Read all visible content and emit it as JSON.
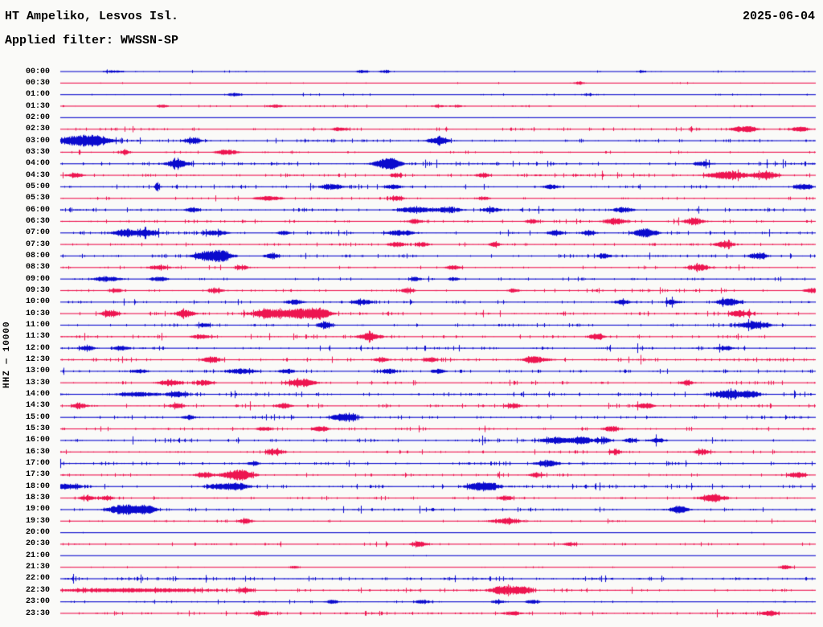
{
  "header": {
    "station": "HT Ampeliko, Lesvos Isl.",
    "filter_label": "Applied filter: WWSSN-SP",
    "date": "2025-06-04"
  },
  "axis": {
    "y_label": "HHZ — 10000",
    "time_label_suffix": "",
    "minutes_per_line": 30
  },
  "chart_data": {
    "type": "seismogram-helicorder",
    "station": "HT Ampeliko, Lesvos Isl.",
    "channel": "HHZ",
    "gain_scale": "10000",
    "filter": "WWSSN-SP",
    "date": "2025-06-04",
    "minutes_per_line": 30,
    "colors": {
      "blue": "#0a0acd",
      "red": "#ed1550"
    },
    "row_format": "t=line start time, c=trace color, n=relative background noise 0-1, b=bursts as [position 0-1 along line, peak amplitude px, half-width px]",
    "rows": [
      {
        "t": "00:00",
        "c": "blue",
        "n": 0.15,
        "b": [
          [
            0.07,
            1.5,
            10
          ],
          [
            0.4,
            2,
            6
          ],
          [
            0.43,
            2,
            5
          ],
          [
            0.77,
            1.5,
            4
          ]
        ]
      },
      {
        "t": "00:30",
        "c": "red",
        "n": 0.13,
        "b": [
          [
            0.687,
            2,
            5
          ]
        ]
      },
      {
        "t": "01:00",
        "c": "blue",
        "n": 0.22,
        "b": [
          [
            0.23,
            2,
            6
          ],
          [
            0.7,
            1.5,
            5
          ]
        ]
      },
      {
        "t": "01:30",
        "c": "red",
        "n": 0.22,
        "b": [
          [
            0.135,
            2,
            5
          ],
          [
            0.285,
            2,
            8
          ],
          [
            0.5,
            1.5,
            6
          ],
          [
            0.525,
            1.5,
            5
          ]
        ]
      },
      {
        "t": "02:00",
        "c": "blue",
        "n": 0.07,
        "b": []
      },
      {
        "t": "02:30",
        "c": "red",
        "n": 0.38,
        "b": [
          [
            0.37,
            2.5,
            7
          ],
          [
            0.9,
            3,
            9
          ],
          [
            0.915,
            3,
            6
          ],
          [
            0.98,
            3,
            7
          ]
        ]
      },
      {
        "t": "03:00",
        "c": "blue",
        "n": 0.45,
        "b": [
          [
            0.02,
            5,
            22
          ],
          [
            0.045,
            5,
            14
          ],
          [
            0.175,
            4,
            7
          ],
          [
            0.5,
            4.5,
            9
          ]
        ]
      },
      {
        "t": "03:30",
        "c": "red",
        "n": 0.28,
        "b": [
          [
            0.085,
            3,
            5
          ],
          [
            0.22,
            3.5,
            10
          ]
        ]
      },
      {
        "t": "04:00",
        "c": "blue",
        "n": 0.45,
        "b": [
          [
            0.155,
            5.5,
            9
          ],
          [
            0.43,
            5,
            11
          ],
          [
            0.44,
            4,
            8
          ],
          [
            0.85,
            3,
            6
          ]
        ]
      },
      {
        "t": "04:30",
        "c": "red",
        "n": 0.45,
        "b": [
          [
            0.02,
            3,
            6
          ],
          [
            0.445,
            3,
            5
          ],
          [
            0.56,
            3,
            6
          ],
          [
            0.885,
            5,
            18
          ],
          [
            0.935,
            4.5,
            10
          ]
        ]
      },
      {
        "t": "05:00",
        "c": "blue",
        "n": 0.42,
        "b": [
          [
            0.128,
            6,
            2
          ],
          [
            0.36,
            3,
            10
          ],
          [
            0.44,
            3,
            8
          ],
          [
            0.65,
            3,
            7
          ],
          [
            0.985,
            4,
            8
          ]
        ]
      },
      {
        "t": "05:30",
        "c": "red",
        "n": 0.33,
        "b": [
          [
            0.275,
            3,
            12
          ],
          [
            0.445,
            2.5,
            6
          ],
          [
            0.56,
            2.5,
            6
          ]
        ]
      },
      {
        "t": "06:00",
        "c": "blue",
        "n": 0.45,
        "b": [
          [
            0.175,
            3,
            6
          ],
          [
            0.47,
            4,
            14
          ],
          [
            0.515,
            4,
            10
          ],
          [
            0.57,
            3.5,
            7
          ],
          [
            0.745,
            3.5,
            9
          ]
        ]
      },
      {
        "t": "06:30",
        "c": "red",
        "n": 0.35,
        "b": [
          [
            0.47,
            3,
            6
          ],
          [
            0.625,
            3,
            6
          ],
          [
            0.735,
            4.5,
            9
          ],
          [
            0.84,
            4.5,
            8
          ]
        ]
      },
      {
        "t": "07:00",
        "c": "blue",
        "n": 0.45,
        "b": [
          [
            0.085,
            5,
            10
          ],
          [
            0.115,
            4,
            9
          ],
          [
            0.205,
            3.5,
            10
          ],
          [
            0.295,
            3,
            5
          ],
          [
            0.45,
            3.5,
            12
          ],
          [
            0.655,
            3,
            7
          ],
          [
            0.7,
            3,
            6
          ],
          [
            0.775,
            5.5,
            10
          ]
        ]
      },
      {
        "t": "07:30",
        "c": "red",
        "n": 0.4,
        "b": [
          [
            0.445,
            3.5,
            7
          ],
          [
            0.48,
            3,
            5
          ],
          [
            0.575,
            3,
            5
          ],
          [
            0.88,
            4,
            8
          ]
        ]
      },
      {
        "t": "08:00",
        "c": "blue",
        "n": 0.45,
        "b": [
          [
            0.195,
            6,
            12
          ],
          [
            0.215,
            6,
            8
          ],
          [
            0.28,
            3.5,
            6
          ],
          [
            0.72,
            3.5,
            6
          ],
          [
            0.925,
            4.5,
            8
          ]
        ]
      },
      {
        "t": "08:30",
        "c": "red",
        "n": 0.35,
        "b": [
          [
            0.13,
            3,
            8
          ],
          [
            0.24,
            3,
            6
          ],
          [
            0.52,
            3,
            6
          ],
          [
            0.845,
            4,
            9
          ]
        ]
      },
      {
        "t": "09:00",
        "c": "blue",
        "n": 0.3,
        "b": [
          [
            0.06,
            3,
            12
          ],
          [
            0.13,
            3,
            8
          ],
          [
            0.47,
            2.5,
            5
          ],
          [
            0.52,
            2.5,
            5
          ]
        ]
      },
      {
        "t": "09:30",
        "c": "red",
        "n": 0.35,
        "b": [
          [
            0.073,
            3,
            5
          ],
          [
            0.205,
            3,
            6
          ],
          [
            0.46,
            3,
            6
          ],
          [
            0.6,
            2.5,
            5
          ],
          [
            0.995,
            3,
            6
          ]
        ]
      },
      {
        "t": "10:00",
        "c": "blue",
        "n": 0.4,
        "b": [
          [
            0.31,
            3,
            8
          ],
          [
            0.4,
            3.5,
            8
          ],
          [
            0.745,
            3,
            6
          ],
          [
            0.81,
            3,
            6
          ],
          [
            0.885,
            5,
            9
          ]
        ]
      },
      {
        "t": "10:30",
        "c": "red",
        "n": 0.45,
        "b": [
          [
            0.065,
            4.5,
            7
          ],
          [
            0.165,
            5,
            8
          ],
          [
            0.275,
            5,
            14
          ],
          [
            0.315,
            6,
            18
          ],
          [
            0.345,
            5,
            10
          ],
          [
            0.9,
            4,
            8
          ]
        ]
      },
      {
        "t": "11:00",
        "c": "blue",
        "n": 0.38,
        "b": [
          [
            0.19,
            2.5,
            6
          ],
          [
            0.35,
            4,
            7
          ],
          [
            0.92,
            5,
            12
          ]
        ]
      },
      {
        "t": "11:30",
        "c": "red",
        "n": 0.4,
        "b": [
          [
            0.185,
            3,
            8
          ],
          [
            0.41,
            5,
            9
          ],
          [
            0.71,
            4,
            7
          ]
        ]
      },
      {
        "t": "12:00",
        "c": "blue",
        "n": 0.42,
        "b": [
          [
            0.035,
            3,
            6
          ],
          [
            0.08,
            3,
            7
          ],
          [
            0.88,
            3,
            7
          ]
        ]
      },
      {
        "t": "12:30",
        "c": "red",
        "n": 0.45,
        "b": [
          [
            0.2,
            4,
            8
          ],
          [
            0.425,
            3,
            6
          ],
          [
            0.49,
            3,
            6
          ],
          [
            0.63,
            4,
            11
          ]
        ]
      },
      {
        "t": "13:00",
        "c": "blue",
        "n": 0.42,
        "b": [
          [
            0.105,
            3,
            7
          ],
          [
            0.24,
            3.5,
            13
          ],
          [
            0.3,
            3,
            7
          ],
          [
            0.435,
            3,
            6
          ],
          [
            0.5,
            3,
            6
          ]
        ]
      },
      {
        "t": "13:30",
        "c": "red",
        "n": 0.4,
        "b": [
          [
            0.145,
            4,
            10
          ],
          [
            0.19,
            3.5,
            8
          ],
          [
            0.32,
            5,
            12
          ],
          [
            0.83,
            3,
            6
          ]
        ]
      },
      {
        "t": "14:00",
        "c": "blue",
        "n": 0.5,
        "b": [
          [
            0.1,
            3,
            16
          ],
          [
            0.155,
            3,
            10
          ],
          [
            0.885,
            4.5,
            13
          ],
          [
            0.915,
            4,
            8
          ]
        ]
      },
      {
        "t": "14:30",
        "c": "red",
        "n": 0.45,
        "b": [
          [
            0.025,
            3.5,
            6
          ],
          [
            0.155,
            3,
            6
          ],
          [
            0.295,
            3.5,
            7
          ],
          [
            0.6,
            3,
            6
          ],
          [
            0.775,
            3.5,
            7
          ]
        ]
      },
      {
        "t": "15:00",
        "c": "blue",
        "n": 0.38,
        "b": [
          [
            0.17,
            3,
            6
          ],
          [
            0.37,
            4,
            8
          ],
          [
            0.385,
            4,
            6
          ]
        ]
      },
      {
        "t": "15:30",
        "c": "red",
        "n": 0.38,
        "b": [
          [
            0.27,
            3,
            6
          ],
          [
            0.345,
            3.5,
            7
          ],
          [
            0.73,
            4,
            7
          ]
        ]
      },
      {
        "t": "16:00",
        "c": "blue",
        "n": 0.45,
        "b": [
          [
            0.655,
            4.5,
            11
          ],
          [
            0.69,
            4.5,
            11
          ],
          [
            0.72,
            3,
            6
          ],
          [
            0.755,
            3,
            6
          ],
          [
            0.79,
            3,
            6
          ]
        ]
      },
      {
        "t": "16:30",
        "c": "red",
        "n": 0.4,
        "b": [
          [
            0.285,
            4,
            7
          ],
          [
            0.735,
            3,
            5
          ],
          [
            0.85,
            3.5,
            7
          ]
        ]
      },
      {
        "t": "17:00",
        "c": "blue",
        "n": 0.42,
        "b": [
          [
            0.255,
            2.5,
            6
          ],
          [
            0.645,
            4,
            10
          ]
        ]
      },
      {
        "t": "17:30",
        "c": "red",
        "n": 0.38,
        "b": [
          [
            0.19,
            3,
            7
          ],
          [
            0.235,
            7,
            13
          ],
          [
            0.63,
            3,
            6
          ],
          [
            0.975,
            3.5,
            7
          ]
        ]
      },
      {
        "t": "18:00",
        "c": "blue",
        "n": 0.42,
        "b": [
          [
            0.003,
            4,
            5
          ],
          [
            0.02,
            3,
            6
          ],
          [
            0.21,
            4,
            11
          ],
          [
            0.235,
            5,
            8
          ],
          [
            0.55,
            4.5,
            9
          ],
          [
            0.57,
            5,
            7
          ]
        ]
      },
      {
        "t": "18:30",
        "c": "red",
        "n": 0.38,
        "b": [
          [
            0.035,
            3,
            6
          ],
          [
            0.06,
            3,
            6
          ],
          [
            0.59,
            3,
            6
          ],
          [
            0.865,
            5,
            10
          ]
        ]
      },
      {
        "t": "19:00",
        "c": "blue",
        "n": 0.42,
        "b": [
          [
            0.085,
            7,
            14
          ],
          [
            0.115,
            5,
            8
          ],
          [
            0.82,
            4.5,
            8
          ]
        ]
      },
      {
        "t": "19:30",
        "c": "red",
        "n": 0.25,
        "b": [
          [
            0.245,
            3,
            6
          ],
          [
            0.59,
            3.5,
            13
          ]
        ]
      },
      {
        "t": "20:00",
        "c": "blue",
        "n": 0.08,
        "b": []
      },
      {
        "t": "20:30",
        "c": "red",
        "n": 0.3,
        "b": [
          [
            0.475,
            3.5,
            7
          ],
          [
            0.675,
            2.5,
            6
          ]
        ]
      },
      {
        "t": "21:00",
        "c": "blue",
        "n": 0.07,
        "b": []
      },
      {
        "t": "21:30",
        "c": "red",
        "n": 0.15,
        "b": [
          [
            0.31,
            2,
            4
          ],
          [
            0.96,
            2.5,
            6
          ]
        ]
      },
      {
        "t": "22:00",
        "c": "blue",
        "n": 0.5,
        "b": []
      },
      {
        "t": "22:30",
        "c": "red",
        "n": 0.38,
        "b": [
          [
            0.05,
            2,
            40
          ],
          [
            0.15,
            2,
            40
          ],
          [
            0.245,
            3,
            7
          ],
          [
            0.59,
            6,
            13
          ],
          [
            0.615,
            4,
            8
          ]
        ]
      },
      {
        "t": "23:00",
        "c": "blue",
        "n": 0.3,
        "b": [
          [
            0.36,
            2.5,
            6
          ],
          [
            0.48,
            2.5,
            6
          ],
          [
            0.58,
            2.5,
            6
          ],
          [
            0.625,
            2.5,
            6
          ]
        ]
      },
      {
        "t": "23:30",
        "c": "red",
        "n": 0.48,
        "b": [
          [
            0.265,
            3,
            7
          ],
          [
            0.6,
            2.5,
            6
          ],
          [
            0.94,
            3,
            7
          ]
        ]
      }
    ]
  }
}
